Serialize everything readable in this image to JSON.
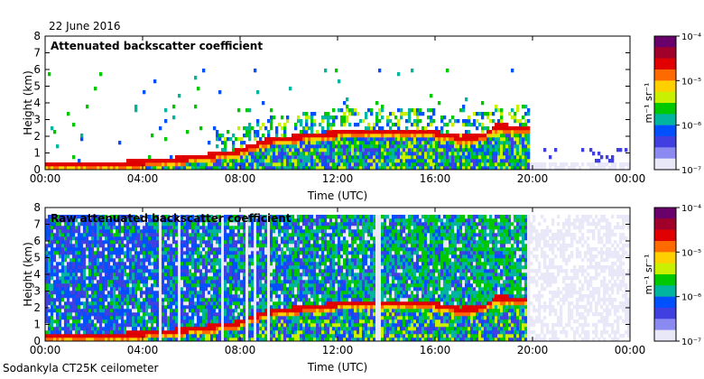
{
  "date_label": "22 June 2016",
  "footer": "Sodankyla CT25K ceilometer",
  "colorbar": {
    "unit_label": "m⁻¹ sr⁻¹",
    "ticks": [
      "10⁻⁴",
      "10⁻⁵",
      "10⁻⁶",
      "10⁻⁷"
    ],
    "colors": [
      "#6a006a",
      "#a0002a",
      "#e00000",
      "#ff6a00",
      "#ffd000",
      "#c8f000",
      "#00c800",
      "#00b4a0",
      "#0050ff",
      "#4040e0",
      "#8a8af0",
      "#e8e8f8"
    ]
  },
  "chart_data": [
    {
      "type": "heatmap",
      "title": "Attenuated backscatter coefficient",
      "xlabel": "Time (UTC)",
      "ylabel": "Height (km)",
      "xticks": [
        "00:00",
        "04:00",
        "08:00",
        "12:00",
        "16:00",
        "20:00",
        "00:00"
      ],
      "yticks": [
        "0",
        "1",
        "2",
        "3",
        "4",
        "5",
        "6",
        "7",
        "8"
      ],
      "xlim_hours": [
        0,
        24
      ],
      "ylim_km": [
        0,
        8
      ],
      "data_end_hours": 19.9,
      "layer_top_km": [
        [
          0,
          0.3
        ],
        [
          2,
          0.3
        ],
        [
          4,
          0.45
        ],
        [
          6,
          0.7
        ],
        [
          8,
          1.1
        ],
        [
          9,
          1.7
        ],
        [
          10,
          1.9
        ],
        [
          12,
          2.2
        ],
        [
          14,
          2.3
        ],
        [
          16,
          2.2
        ],
        [
          17,
          1.9
        ],
        [
          18,
          2.0
        ],
        [
          18.5,
          2.6
        ],
        [
          19.9,
          2.5
        ]
      ],
      "log_colorscale": [
        -7,
        -4
      ]
    },
    {
      "type": "heatmap",
      "title": "Raw attenuated backscatter coefficient",
      "xlabel": "Time (UTC)",
      "ylabel": "Height (km)",
      "xticks": [
        "00:00",
        "04:00",
        "08:00",
        "12:00",
        "16:00",
        "20:00",
        "00:00"
      ],
      "yticks": [
        "0",
        "1",
        "2",
        "3",
        "4",
        "5",
        "6",
        "7",
        "8"
      ],
      "xlim_hours": [
        0,
        24
      ],
      "ylim_km": [
        0,
        8
      ],
      "data_end_hours": 19.9,
      "layer_top_km": [
        [
          0,
          0.3
        ],
        [
          2,
          0.3
        ],
        [
          4,
          0.45
        ],
        [
          6,
          0.7
        ],
        [
          8,
          1.1
        ],
        [
          9,
          1.7
        ],
        [
          10,
          1.9
        ],
        [
          12,
          2.2
        ],
        [
          14,
          2.3
        ],
        [
          16,
          2.2
        ],
        [
          17,
          1.9
        ],
        [
          18,
          2.0
        ],
        [
          18.5,
          2.6
        ],
        [
          19.9,
          2.5
        ]
      ],
      "log_colorscale": [
        -7,
        -4
      ]
    }
  ]
}
